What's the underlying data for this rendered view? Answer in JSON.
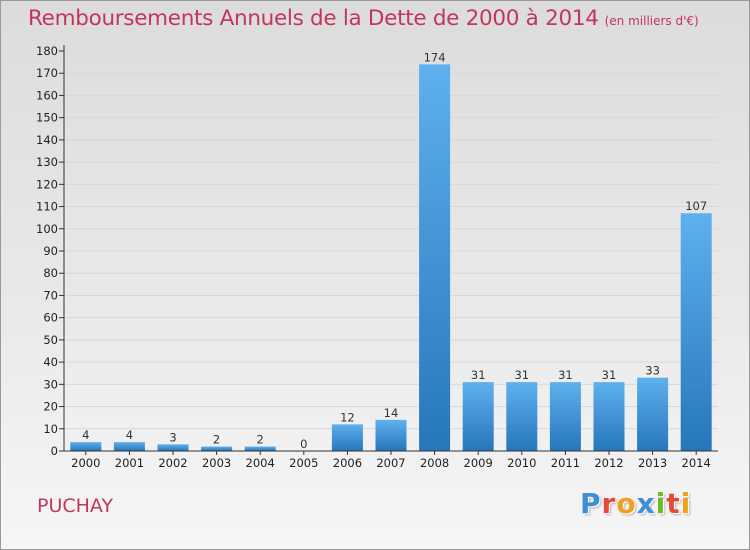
{
  "header": {
    "title": "Remboursements Annuels de la Dette de 2000 à 2014",
    "subtitle": "(en milliers d'€)"
  },
  "footer": {
    "commune": "PUCHAY",
    "brand_letters": [
      {
        "ch": "P",
        "color": "#3d8fd6"
      },
      {
        "ch": "r",
        "color": "#e64a3c"
      },
      {
        "ch": "o",
        "color": "#f0a01e"
      },
      {
        "ch": "x",
        "color": "#3d8fd6"
      },
      {
        "ch": "i",
        "color": "#6cbb2a"
      },
      {
        "ch": "t",
        "color": "#e64a3c"
      },
      {
        "ch": "i",
        "color": "#f0a01e"
      }
    ]
  },
  "colors": {
    "bar_light": "#5fb0ee",
    "bar_dark": "#2676bb",
    "axis": "#333333",
    "grid": "#d8d8d8",
    "title": "#c2365c"
  },
  "chart_data": {
    "type": "bar",
    "title": "Remboursements Annuels de la Dette de 2000 à 2014",
    "xlabel": "",
    "ylabel": "",
    "categories": [
      "2000",
      "2001",
      "2002",
      "2003",
      "2004",
      "2005",
      "2006",
      "2007",
      "2008",
      "2009",
      "2010",
      "2011",
      "2012",
      "2013",
      "2014"
    ],
    "values": [
      4,
      4,
      3,
      2,
      2,
      0,
      12,
      14,
      174,
      31,
      31,
      31,
      31,
      33,
      107
    ],
    "ylim": [
      0,
      180
    ],
    "yticks": [
      0,
      10,
      20,
      30,
      40,
      50,
      60,
      70,
      80,
      90,
      100,
      110,
      120,
      130,
      140,
      150,
      160,
      170,
      180
    ],
    "grid": true,
    "legend": "none"
  }
}
